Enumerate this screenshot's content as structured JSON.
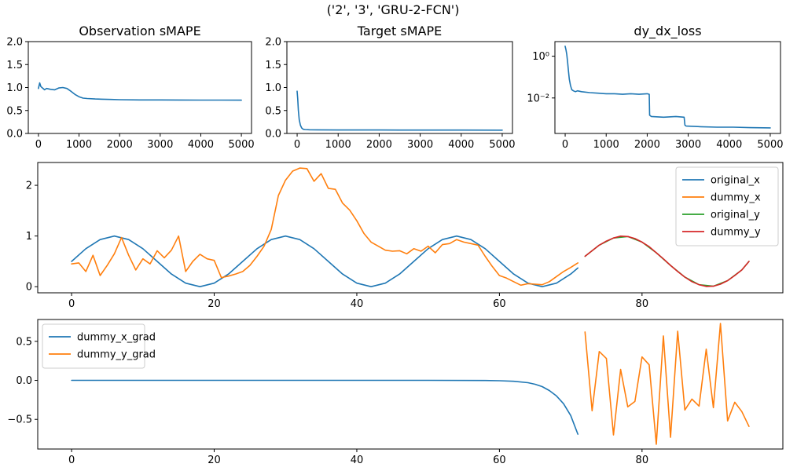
{
  "figure": {
    "suptitle": "('2', '3', 'GRU-2-FCN')"
  },
  "colors": {
    "blue": "#1f77b4",
    "orange": "#ff7f0e",
    "green": "#2ca02c",
    "red": "#d62728"
  },
  "chart_data": [
    {
      "id": "obs_smape",
      "type": "line",
      "title": "Observation sMAPE",
      "xlim": [
        -250,
        5250
      ],
      "ylim": [
        0,
        2
      ],
      "xticks": [
        0,
        1000,
        2000,
        3000,
        4000,
        5000
      ],
      "yticks": [
        0.0,
        0.5,
        1.0,
        1.5,
        2.0
      ],
      "ytick_labels": [
        "0.0",
        "0.5",
        "1.0",
        "1.5",
        "2.0"
      ],
      "series": [
        {
          "color": "#1f77b4",
          "x": [
            0,
            30,
            60,
            100,
            150,
            200,
            300,
            400,
            500,
            600,
            700,
            800,
            900,
            1000,
            1100,
            1200,
            1400,
            1600,
            1800,
            2000,
            2500,
            3000,
            3500,
            4000,
            4500,
            5000
          ],
          "y": [
            0.98,
            1.1,
            1.02,
            0.99,
            0.95,
            0.98,
            0.96,
            0.95,
            0.99,
            1.0,
            0.98,
            0.92,
            0.85,
            0.8,
            0.77,
            0.76,
            0.75,
            0.745,
            0.74,
            0.735,
            0.73,
            0.73,
            0.728,
            0.727,
            0.726,
            0.725
          ]
        }
      ]
    },
    {
      "id": "target_smape",
      "type": "line",
      "title": "Target sMAPE",
      "xlim": [
        -250,
        5250
      ],
      "ylim": [
        0,
        2
      ],
      "xticks": [
        0,
        1000,
        2000,
        3000,
        4000,
        5000
      ],
      "yticks": [
        0.0,
        0.5,
        1.0,
        1.5,
        2.0
      ],
      "ytick_labels": [
        "0.0",
        "0.5",
        "1.0",
        "1.5",
        "2.0"
      ],
      "series": [
        {
          "color": "#1f77b4",
          "x": [
            0,
            15,
            30,
            50,
            80,
            110,
            150,
            200,
            300,
            500,
            1000,
            2000,
            3000,
            4000,
            5000
          ],
          "y": [
            0.92,
            0.75,
            0.5,
            0.3,
            0.18,
            0.12,
            0.09,
            0.085,
            0.08,
            0.078,
            0.076,
            0.075,
            0.074,
            0.073,
            0.072
          ]
        }
      ]
    },
    {
      "id": "dy_dx_loss",
      "type": "line",
      "title": "dy_dx_loss",
      "xlim": [
        -250,
        5250
      ],
      "ylim": [
        0.0002,
        5
      ],
      "yscale": "log",
      "xticks": [
        0,
        1000,
        2000,
        3000,
        4000,
        5000
      ],
      "yticks": [
        1,
        0.01
      ],
      "ytick_labels": [
        "10⁰",
        "10⁻²"
      ],
      "series": [
        {
          "color": "#1f77b4",
          "x": [
            0,
            20,
            40,
            60,
            80,
            100,
            130,
            160,
            200,
            250,
            300,
            400,
            600,
            800,
            1000,
            1200,
            1400,
            1600,
            1800,
            2000,
            2050,
            2060,
            2100,
            2400,
            2700,
            2900,
            2920,
            2950,
            3300,
            3700,
            4100,
            4500,
            5000
          ],
          "y": [
            3,
            2,
            1.2,
            0.5,
            0.2,
            0.08,
            0.04,
            0.025,
            0.022,
            0.02,
            0.022,
            0.02,
            0.018,
            0.017,
            0.016,
            0.016,
            0.015,
            0.016,
            0.015,
            0.016,
            0.015,
            0.0015,
            0.0013,
            0.0012,
            0.0013,
            0.0012,
            0.0005,
            0.00045,
            0.00042,
            0.0004,
            0.0004,
            0.00038,
            0.00037
          ]
        }
      ]
    },
    {
      "id": "series_plot",
      "type": "line",
      "xlim": [
        -4.75,
        99.75
      ],
      "ylim": [
        -0.12,
        2.45
      ],
      "xticks": [
        0,
        20,
        40,
        60,
        80
      ],
      "yticks": [
        0,
        1,
        2
      ],
      "legend": "top-right",
      "series": [
        {
          "name": "original_x",
          "color": "#1f77b4",
          "x": [
            0,
            2,
            4,
            6,
            8,
            10,
            12,
            14,
            16,
            18,
            20,
            22,
            24,
            26,
            28,
            30,
            32,
            34,
            36,
            38,
            40,
            42,
            44,
            46,
            48,
            50,
            52,
            54,
            56,
            58,
            60,
            62,
            64,
            66,
            68,
            70,
            71
          ],
          "y": [
            0.5,
            0.75,
            0.93,
            1.0,
            0.93,
            0.75,
            0.5,
            0.25,
            0.07,
            0.0,
            0.07,
            0.25,
            0.5,
            0.75,
            0.93,
            1.0,
            0.93,
            0.75,
            0.5,
            0.25,
            0.07,
            0.0,
            0.07,
            0.25,
            0.5,
            0.75,
            0.93,
            1.0,
            0.93,
            0.75,
            0.5,
            0.25,
            0.07,
            0.0,
            0.07,
            0.25,
            0.37
          ]
        },
        {
          "name": "dummy_x",
          "color": "#ff7f0e",
          "x": [
            0,
            1,
            2,
            3,
            4,
            5,
            6,
            7,
            8,
            9,
            10,
            11,
            12,
            13,
            14,
            15,
            16,
            17,
            18,
            19,
            20,
            21,
            22,
            23,
            24,
            25,
            26,
            27,
            28,
            29,
            30,
            31,
            32,
            33,
            34,
            35,
            36,
            37,
            38,
            39,
            40,
            41,
            42,
            43,
            44,
            45,
            46,
            47,
            48,
            49,
            50,
            51,
            52,
            53,
            54,
            55,
            56,
            57,
            58,
            59,
            60,
            61,
            62,
            63,
            64,
            65,
            66,
            67,
            68,
            69,
            70,
            71
          ],
          "y": [
            0.45,
            0.47,
            0.3,
            0.62,
            0.22,
            0.42,
            0.65,
            0.97,
            0.62,
            0.33,
            0.55,
            0.45,
            0.71,
            0.57,
            0.72,
            1.0,
            0.3,
            0.5,
            0.64,
            0.55,
            0.52,
            0.18,
            0.21,
            0.25,
            0.3,
            0.42,
            0.6,
            0.8,
            1.13,
            1.8,
            2.1,
            2.28,
            2.34,
            2.33,
            2.08,
            2.23,
            1.94,
            1.92,
            1.65,
            1.51,
            1.3,
            1.05,
            0.88,
            0.8,
            0.72,
            0.7,
            0.71,
            0.65,
            0.75,
            0.7,
            0.8,
            0.67,
            0.83,
            0.85,
            0.93,
            0.88,
            0.85,
            0.82,
            0.6,
            0.4,
            0.22,
            0.17,
            0.1,
            0.03,
            0.06,
            0.05,
            0.04,
            0.1,
            0.2,
            0.3,
            0.38,
            0.47
          ]
        },
        {
          "name": "original_y",
          "color": "#2ca02c",
          "x": [
            72,
            74,
            76,
            78,
            80,
            82,
            84,
            86,
            88,
            90,
            92,
            94,
            95
          ],
          "y": [
            0.6,
            0.82,
            0.96,
            0.99,
            0.88,
            0.67,
            0.42,
            0.19,
            0.04,
            0.01,
            0.12,
            0.33,
            0.5
          ]
        },
        {
          "name": "dummy_y",
          "color": "#d62728",
          "x": [
            72,
            73,
            74,
            75,
            76,
            77,
            78,
            79,
            80,
            81,
            82,
            83,
            84,
            85,
            86,
            87,
            88,
            89,
            90,
            91,
            92,
            93,
            94,
            95
          ],
          "y": [
            0.6,
            0.71,
            0.82,
            0.9,
            0.96,
            0.998,
            0.99,
            0.95,
            0.88,
            0.79,
            0.67,
            0.55,
            0.42,
            0.3,
            0.19,
            0.1,
            0.04,
            0.005,
            0.01,
            0.05,
            0.12,
            0.22,
            0.33,
            0.5
          ]
        }
      ]
    },
    {
      "id": "grad_plot",
      "type": "line",
      "xlim": [
        -4.75,
        99.75
      ],
      "ylim": [
        -0.88,
        0.78
      ],
      "xticks": [
        0,
        20,
        40,
        60,
        80
      ],
      "yticks": [
        -0.5,
        0.0,
        0.5
      ],
      "ytick_labels": [
        "−0.5",
        "0.0",
        "0.5"
      ],
      "legend": "top-left",
      "series": [
        {
          "name": "dummy_x_grad",
          "color": "#1f77b4",
          "x": [
            0,
            10,
            20,
            30,
            40,
            50,
            58,
            60,
            62,
            64,
            65,
            66,
            67,
            68,
            69,
            70,
            71
          ],
          "y": [
            0,
            0,
            0,
            0,
            0,
            0,
            -0.002,
            -0.005,
            -0.012,
            -0.03,
            -0.05,
            -0.08,
            -0.13,
            -0.2,
            -0.3,
            -0.45,
            -0.69
          ]
        },
        {
          "name": "dummy_y_grad",
          "color": "#ff7f0e",
          "x": [
            72,
            73,
            74,
            75,
            76,
            77,
            78,
            79,
            80,
            81,
            82,
            83,
            84,
            85,
            86,
            87,
            88,
            89,
            90,
            91,
            92,
            93,
            94,
            95
          ],
          "y": [
            0.62,
            -0.39,
            0.37,
            0.28,
            -0.7,
            0.14,
            -0.34,
            -0.27,
            0.3,
            0.2,
            -0.82,
            0.57,
            -0.73,
            0.63,
            -0.38,
            -0.24,
            -0.33,
            0.4,
            -0.35,
            0.73,
            -0.52,
            -0.28,
            -0.4,
            -0.59
          ]
        }
      ]
    }
  ]
}
